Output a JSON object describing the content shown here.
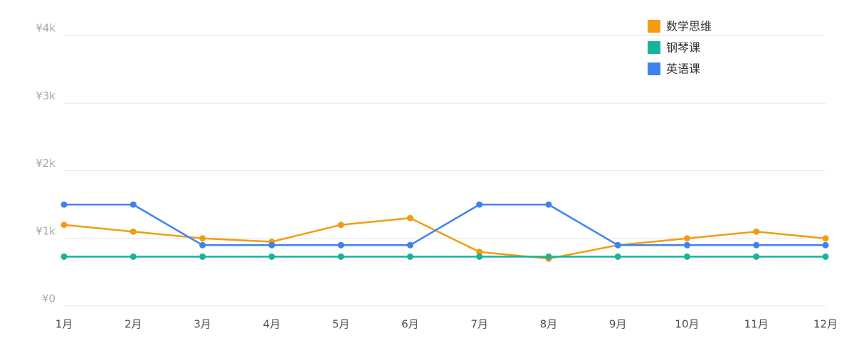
{
  "chart_data": {
    "type": "line",
    "categories": [
      "1月",
      "2月",
      "3月",
      "4月",
      "5月",
      "6月",
      "7月",
      "8月",
      "9月",
      "10月",
      "11月",
      "12月"
    ],
    "series": [
      {
        "name": "数学思维",
        "color": "#f39c12",
        "values": [
          1200,
          1100,
          1000,
          950,
          1200,
          1300,
          800,
          700,
          900,
          1000,
          1100,
          1000
        ]
      },
      {
        "name": "钢琴课",
        "color": "#17b39b",
        "values": [
          730,
          730,
          730,
          730,
          730,
          730,
          730,
          730,
          730,
          730,
          730,
          730
        ]
      },
      {
        "name": "英语课",
        "color": "#3f82ee",
        "values": [
          1500,
          1500,
          900,
          900,
          900,
          900,
          1500,
          1500,
          900,
          900,
          900,
          900
        ]
      }
    ],
    "ylim": [
      0,
      4000
    ],
    "yticks": [
      {
        "value": 0,
        "label": "¥0"
      },
      {
        "value": 1000,
        "label": "¥1k"
      },
      {
        "value": 2000,
        "label": "¥2k"
      },
      {
        "value": 3000,
        "label": "¥3k"
      },
      {
        "value": 4000,
        "label": "¥4k"
      }
    ],
    "grid": true
  }
}
